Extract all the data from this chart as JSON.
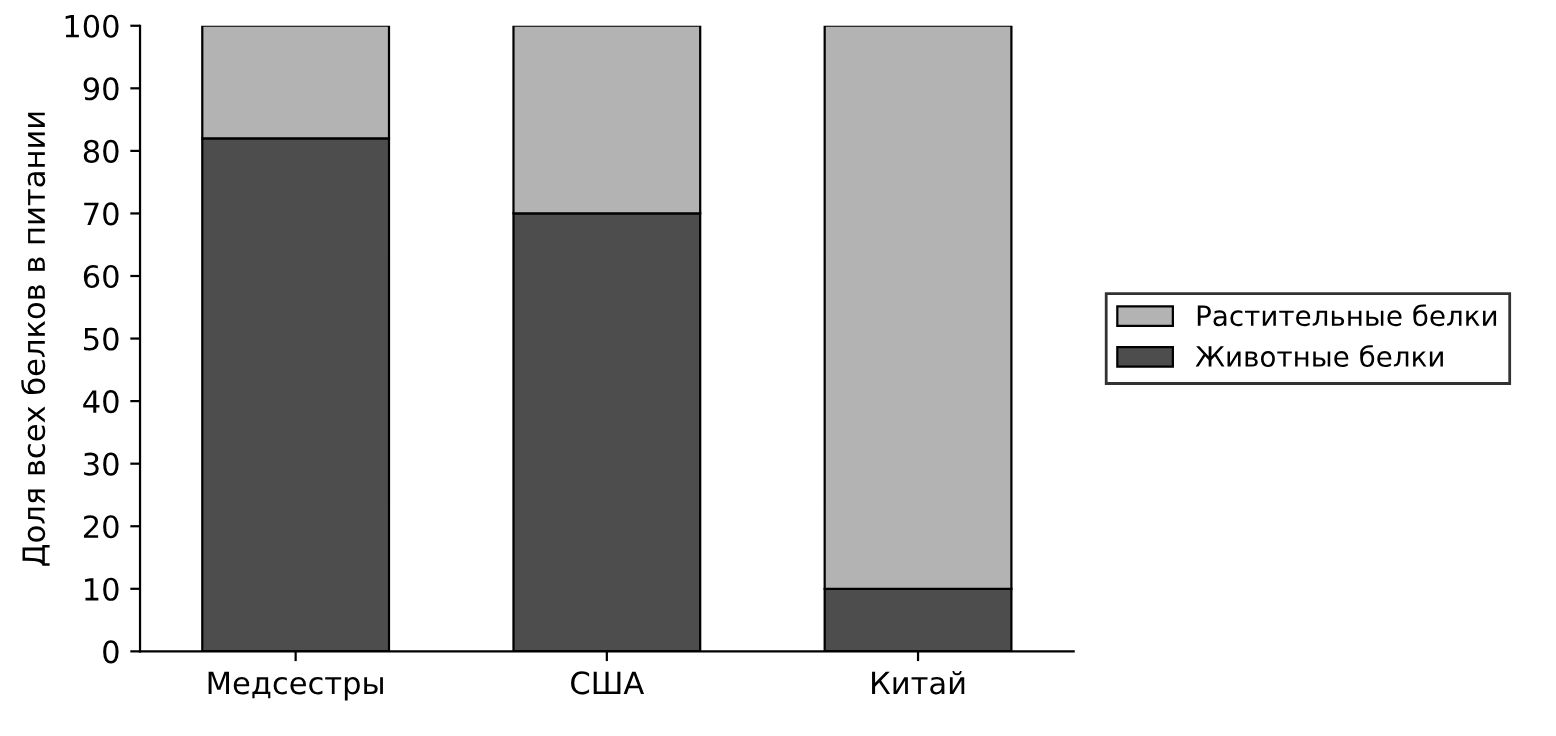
{
  "chart_data": {
    "type": "bar",
    "stacked": true,
    "ylabel": "Доля всех белков в питании",
    "categories": [
      "Медсестры",
      "США",
      "Китай"
    ],
    "series": [
      {
        "name": "Животные белки",
        "color": "#4d4d4d",
        "values": [
          82,
          70,
          10
        ]
      },
      {
        "name": "Растительные белки",
        "color": "#b3b3b3",
        "values": [
          18,
          30,
          90
        ]
      }
    ],
    "ylim": [
      0,
      100
    ],
    "yticks": [
      0,
      10,
      20,
      30,
      40,
      50,
      60,
      70,
      80,
      90,
      100
    ],
    "grid": false,
    "legend": "right"
  }
}
